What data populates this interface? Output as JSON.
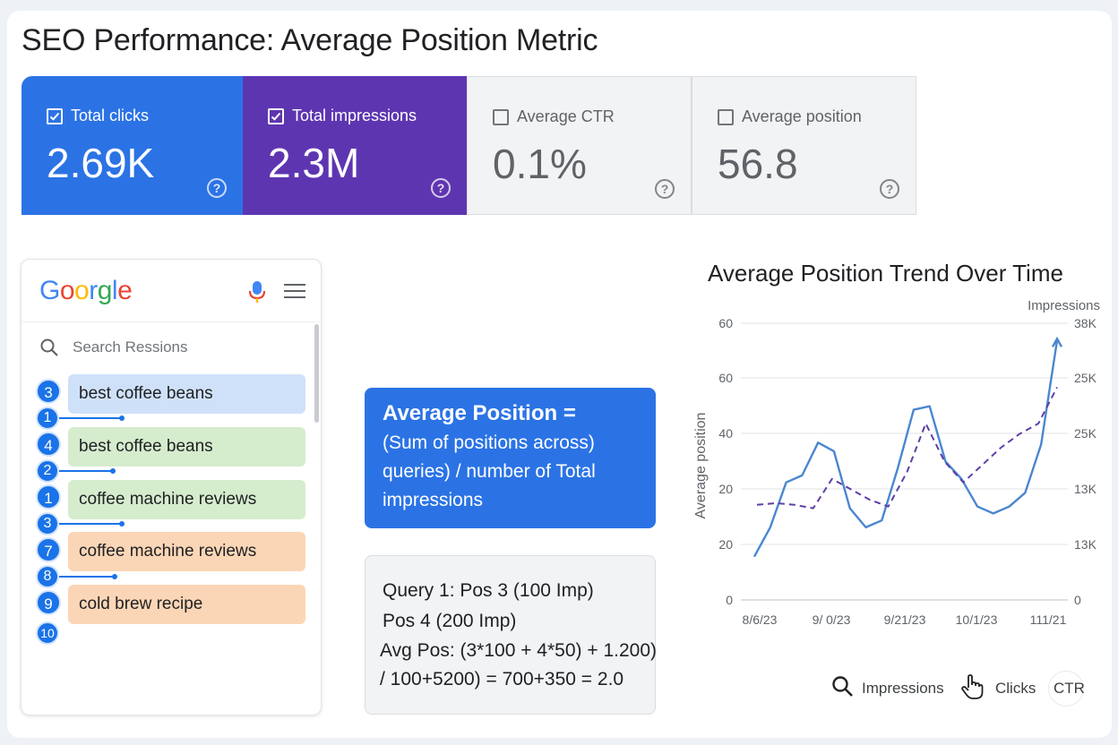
{
  "page_title": "SEO Performance: Average Position Metric",
  "metrics": [
    {
      "label": "Total clicks",
      "value": "2.69K",
      "checked": true,
      "color": "#2b73e5"
    },
    {
      "label": "Total impressions",
      "value": "2.3M",
      "checked": true,
      "color": "#5e35b1"
    },
    {
      "label": "Average CTR",
      "value": "0.1%",
      "checked": false,
      "color": "#f1f3f4"
    },
    {
      "label": "Average position",
      "value": "56.8",
      "checked": false,
      "color": "#f1f3f4"
    }
  ],
  "help_glyph": "?",
  "google": {
    "logo": [
      "G",
      "o",
      "o",
      "r",
      "g",
      "l",
      "e"
    ],
    "logo_colors": [
      "#4285f4",
      "#ea4335",
      "#fbbc05",
      "#4285f4",
      "#34a853",
      "#4285f4",
      "#ea4335"
    ],
    "search_placeholder": "Search Ressions",
    "results": [
      {
        "badge": "3",
        "label": "best coffee beans",
        "bg": "#cfe1f9"
      },
      {
        "badge": "4",
        "label": "best coffee beans",
        "bg": "#d5eccd"
      },
      {
        "badge": "1",
        "label": "coffee machine reviews",
        "bg": "#d5eccd"
      },
      {
        "badge": "7",
        "label": "coffee machine reviews",
        "bg": "#fbd6b6"
      },
      {
        "badge": "9",
        "label": "cold brew recipe",
        "bg": "#fbd6b6"
      }
    ],
    "connector_badges": [
      "1",
      "2",
      "3",
      "8"
    ],
    "last_badge": "10"
  },
  "formula": {
    "title": "Average Position =",
    "body": "(Sum of positions across) queries) / number of Total impressions"
  },
  "example": {
    "line1": "Query 1: Pos 3 (100 Imp)",
    "line2": "Pos 4 (200 Imp)",
    "line3": "Avg Pos: (3*100 + 4*50) + 1.200)",
    "line4": "/ 100+5200) = 700+350 = 2.0"
  },
  "chart_data": {
    "type": "line",
    "title": "Average Position Trend Over Time",
    "ylabel": "Average position",
    "y2label": "Impressions",
    "y_ticks": [
      "60",
      "60",
      "40",
      "20",
      "20",
      "0"
    ],
    "y2_ticks": [
      "38K",
      "25K",
      "25K",
      "13K",
      "13K",
      "0"
    ],
    "x_ticks": [
      "8/6/23",
      "9/ 0/23",
      "9/21/23",
      "10/1/23",
      "111/21"
    ],
    "grid": true,
    "series": [
      {
        "style": "solid",
        "color": "#4a86d0",
        "values": [
          2.5,
          4.2,
          6.8,
          7.2,
          9.1,
          8.6,
          5.3,
          4.2,
          4.6,
          7.6,
          11.0,
          11.2,
          8.0,
          7.0,
          5.4,
          5.0,
          5.4,
          6.2,
          9.0,
          15.0
        ]
      },
      {
        "style": "dashed",
        "color": "#5e3fa6",
        "values": [
          5.5,
          5.6,
          5.5,
          5.3,
          7.0,
          6.4,
          5.8,
          5.4,
          7.4,
          10.2,
          8.0,
          6.8,
          7.8,
          8.8,
          9.6,
          10.2,
          12.3
        ]
      }
    ]
  },
  "legend": {
    "impressions": "Impressions",
    "clicks": "Clicks",
    "ctr": "CTR"
  }
}
